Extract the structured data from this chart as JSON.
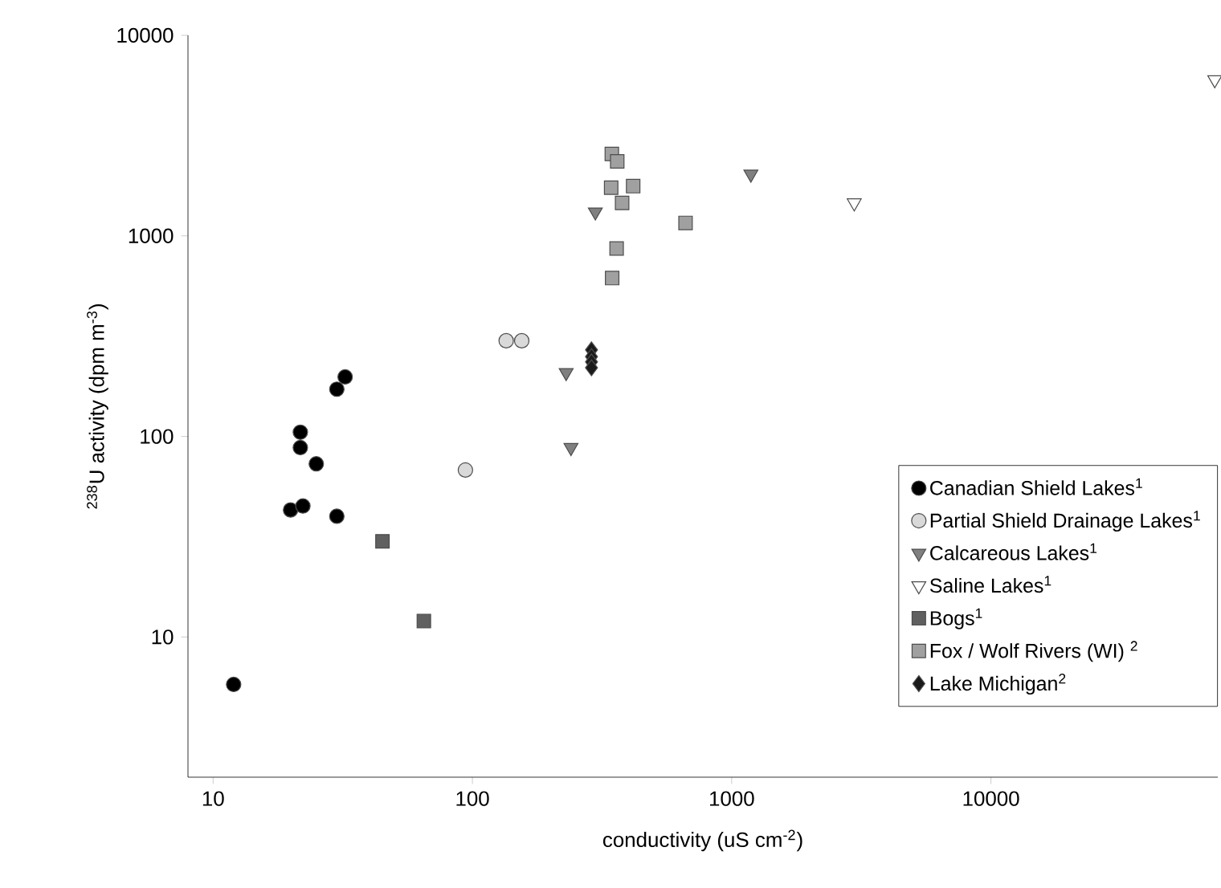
{
  "chart_data": {
    "type": "scatter",
    "log": "xy",
    "xlabel": "conductivity (uS cm$^{-2}$)",
    "ylabel": "$^{238}$U activity (dpm m$^{-3}$)",
    "xlim": [
      8,
      75000
    ],
    "ylim": [
      2,
      10000
    ],
    "xticks": [
      10,
      100,
      1000,
      10000
    ],
    "yticks": [
      10,
      100,
      1000,
      10000
    ],
    "legend": "bottom right",
    "series": [
      {
        "name": "Canadian Shield Lakes$^{1}$",
        "color": "#000000",
        "marker": "circle",
        "x": [
          12,
          21.7,
          21.7,
          25,
          19.9,
          22.2,
          30,
          30,
          32.3
        ],
        "values": [
          5.8,
          105,
          88,
          73,
          43,
          45,
          40,
          172,
          198
        ]
      },
      {
        "name": "Partial Shield Drainage Lakes$^{1}$",
        "color": "#d9d9d9",
        "marker": "circle",
        "x": [
          94,
          135,
          155
        ],
        "values": [
          68,
          300,
          300
        ]
      },
      {
        "name": "Calcareous Lakes$^{1}$",
        "color": "#808080",
        "marker": "triangle",
        "x": [
          298,
          1186,
          230,
          240
        ],
        "values": [
          1315,
          2030,
          208,
          88
        ]
      },
      {
        "name": "Saline Lakes$^{1}$",
        "color": "#ffffff",
        "marker": "triangle",
        "x": [
          2970,
          73000
        ],
        "values": [
          1460,
          6000
        ]
      },
      {
        "name": "Bogs$^{1}$",
        "color": "#606060",
        "marker": "square",
        "x": [
          45,
          65
        ],
        "values": [
          30,
          12
        ]
      },
      {
        "name": "Fox / Wolf Rivers (WI) $^{2}$",
        "color": "#a0a0a0",
        "marker": "square",
        "x": [
          345,
          362,
          343,
          417,
          378,
          664,
          360,
          346
        ],
        "values": [
          2560,
          2350,
          1740,
          1770,
          1460,
          1160,
          865,
          616
        ]
      },
      {
        "name": "Lake Michigan$^{2}$",
        "color": "#1a1a1a",
        "marker": "diamond",
        "x": [
          288,
          288,
          288,
          288
        ],
        "values": [
          270,
          250,
          235,
          220
        ]
      }
    ]
  }
}
